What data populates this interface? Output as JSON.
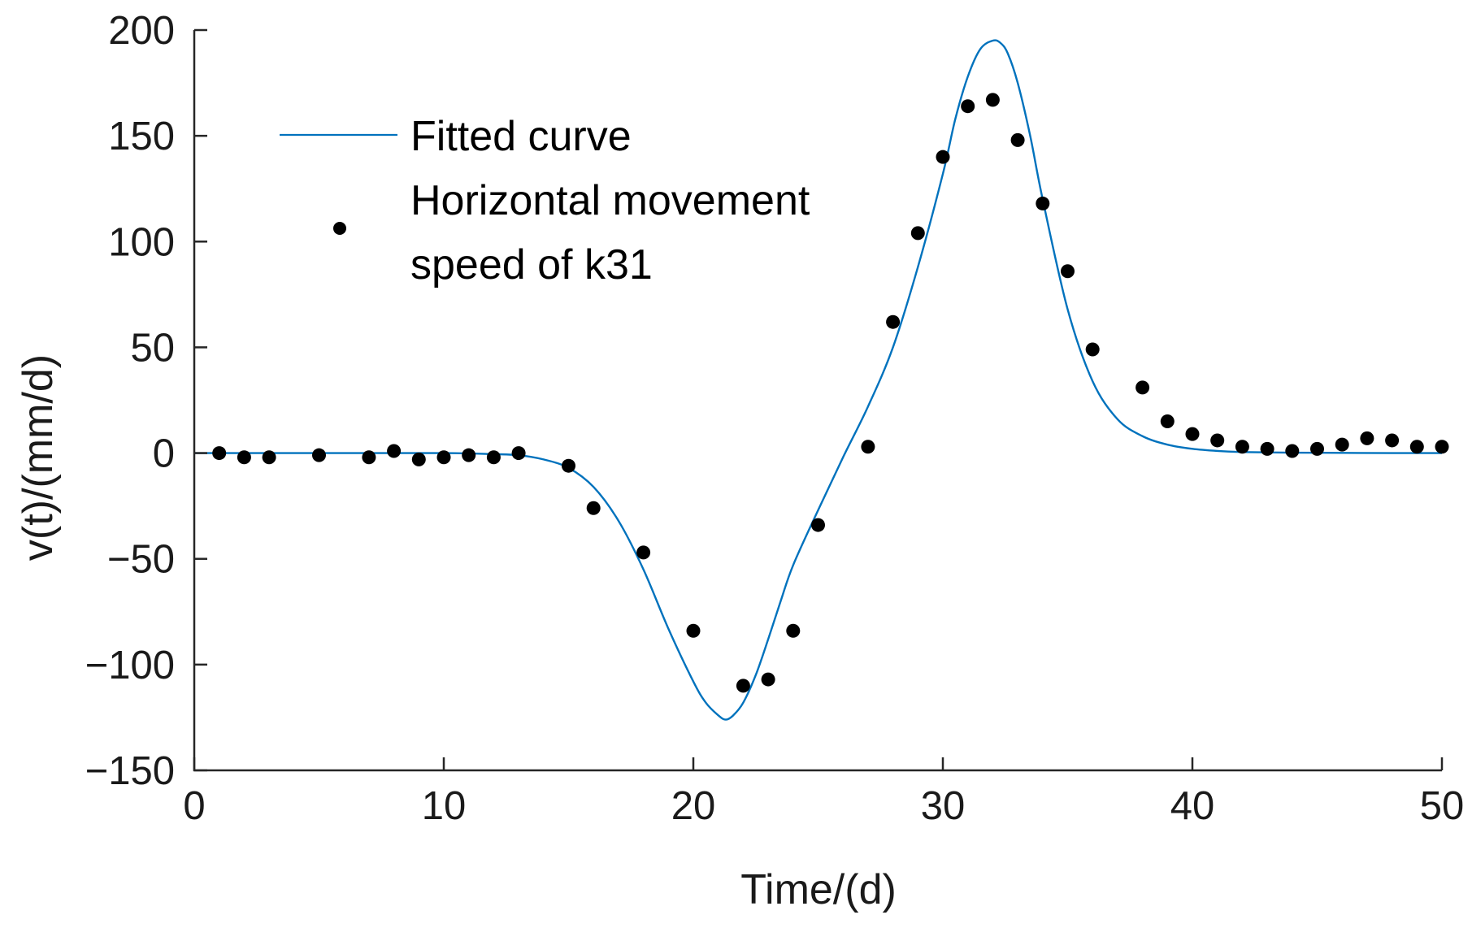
{
  "chart_data": {
    "type": "scatter",
    "title": "",
    "xlabel": "Time/(d)",
    "ylabel": "v(t)/(mm/d)",
    "xlim": [
      0,
      50
    ],
    "ylim": [
      -150,
      200
    ],
    "xticks": [
      0,
      10,
      20,
      30,
      40,
      50
    ],
    "xtick_labels": [
      "0",
      "10",
      "20",
      "30",
      "40",
      "50"
    ],
    "yticks": [
      -150,
      -100,
      -50,
      0,
      50,
      100,
      150,
      200
    ],
    "ytick_labels": [
      "−150",
      "−100",
      "−50",
      "0",
      "50",
      "100",
      "150",
      "200"
    ],
    "grid": false,
    "legend_position": "top-left",
    "colors": {
      "fitted_curve": "#0072BD",
      "observed_points": "#000000",
      "axis": "#262626"
    },
    "series": [
      {
        "name": "Fitted curve",
        "type": "line",
        "x": [
          0,
          5,
          10,
          12,
          13,
          14,
          15,
          16,
          17,
          18,
          19,
          20,
          20.5,
          21,
          21.3,
          21.6,
          22,
          22.5,
          23,
          23.5,
          24,
          25,
          26,
          27,
          28,
          29,
          30,
          30.5,
          31,
          31.5,
          32,
          32.3,
          32.6,
          33,
          33.5,
          34,
          35,
          36,
          37,
          38,
          39,
          40,
          41,
          42,
          44,
          46,
          48,
          50
        ],
        "y": [
          0,
          0,
          0,
          -0.5,
          -1,
          -3,
          -7,
          -16,
          -32,
          -55,
          -83,
          -108,
          -118,
          -124,
          -126,
          -124,
          -118,
          -105,
          -88,
          -70,
          -53,
          -27,
          -2,
          22,
          50,
          88,
          132,
          158,
          178,
          191,
          195,
          194,
          189,
          175,
          150,
          120,
          68,
          34,
          16,
          8,
          4,
          2,
          1,
          0.5,
          0.2,
          0.1,
          0,
          0
        ]
      },
      {
        "name": "Horizontal movement speed of k31",
        "legend_lines": [
          "Horizontal movement",
          "speed of k31"
        ],
        "type": "scatter",
        "x": [
          1,
          2,
          3,
          5,
          7,
          8,
          9,
          10,
          11,
          12,
          13,
          15,
          16,
          18,
          20,
          22,
          23,
          24,
          25,
          27,
          28,
          29,
          30,
          31,
          32,
          33,
          34,
          35,
          36,
          38,
          39,
          40,
          41,
          42,
          43,
          44,
          45,
          46,
          47,
          48,
          49,
          50
        ],
        "y": [
          0,
          -2,
          -2,
          -1,
          -2,
          1,
          -3,
          -2,
          -1,
          -2,
          0,
          -6,
          -26,
          -47,
          -84,
          -110,
          -107,
          -84,
          -34,
          3,
          62,
          104,
          140,
          164,
          167,
          148,
          118,
          86,
          49,
          31,
          15,
          9,
          6,
          3,
          2,
          1,
          2,
          4,
          7,
          6,
          3,
          3
        ]
      }
    ]
  }
}
